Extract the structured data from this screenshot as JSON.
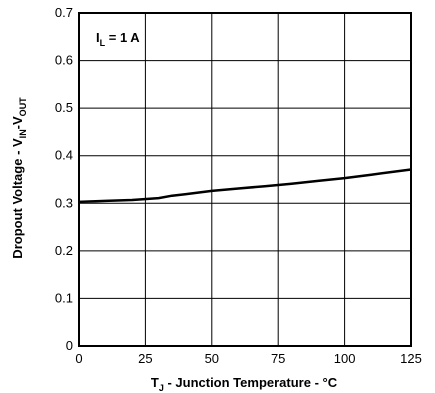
{
  "chart_data": {
    "type": "line",
    "title": "",
    "xlabel": {
      "main": "T",
      "sub": "J",
      "rest": " - Junction Temperature - °C"
    },
    "ylabel": {
      "part1": "Dropout Voltage - V",
      "sub1": "IN",
      "part2": "-V",
      "sub2": "OUT"
    },
    "annotation": {
      "main": "I",
      "sub": "L",
      "rest": " = 1 A"
    },
    "xlim": [
      0,
      125
    ],
    "ylim": [
      0,
      0.7
    ],
    "xticks": [
      0,
      25,
      50,
      75,
      100,
      125
    ],
    "xtick_labels": [
      "0",
      "25",
      "50",
      "75",
      "100",
      "125"
    ],
    "yticks": [
      0,
      0.1,
      0.2,
      0.3,
      0.4,
      0.5,
      0.6,
      0.7
    ],
    "ytick_labels": [
      "0",
      "0.1",
      "0.2",
      "0.3",
      "0.4",
      "0.5",
      "0.6",
      "0.7"
    ],
    "grid": true,
    "series": [
      {
        "color": "#000000",
        "x": [
          0,
          10,
          20,
          30,
          35,
          40,
          50,
          60,
          70,
          80,
          90,
          100,
          110,
          125
        ],
        "y": [
          0.303,
          0.305,
          0.307,
          0.311,
          0.316,
          0.319,
          0.326,
          0.331,
          0.336,
          0.341,
          0.347,
          0.353,
          0.36,
          0.371
        ]
      }
    ]
  }
}
